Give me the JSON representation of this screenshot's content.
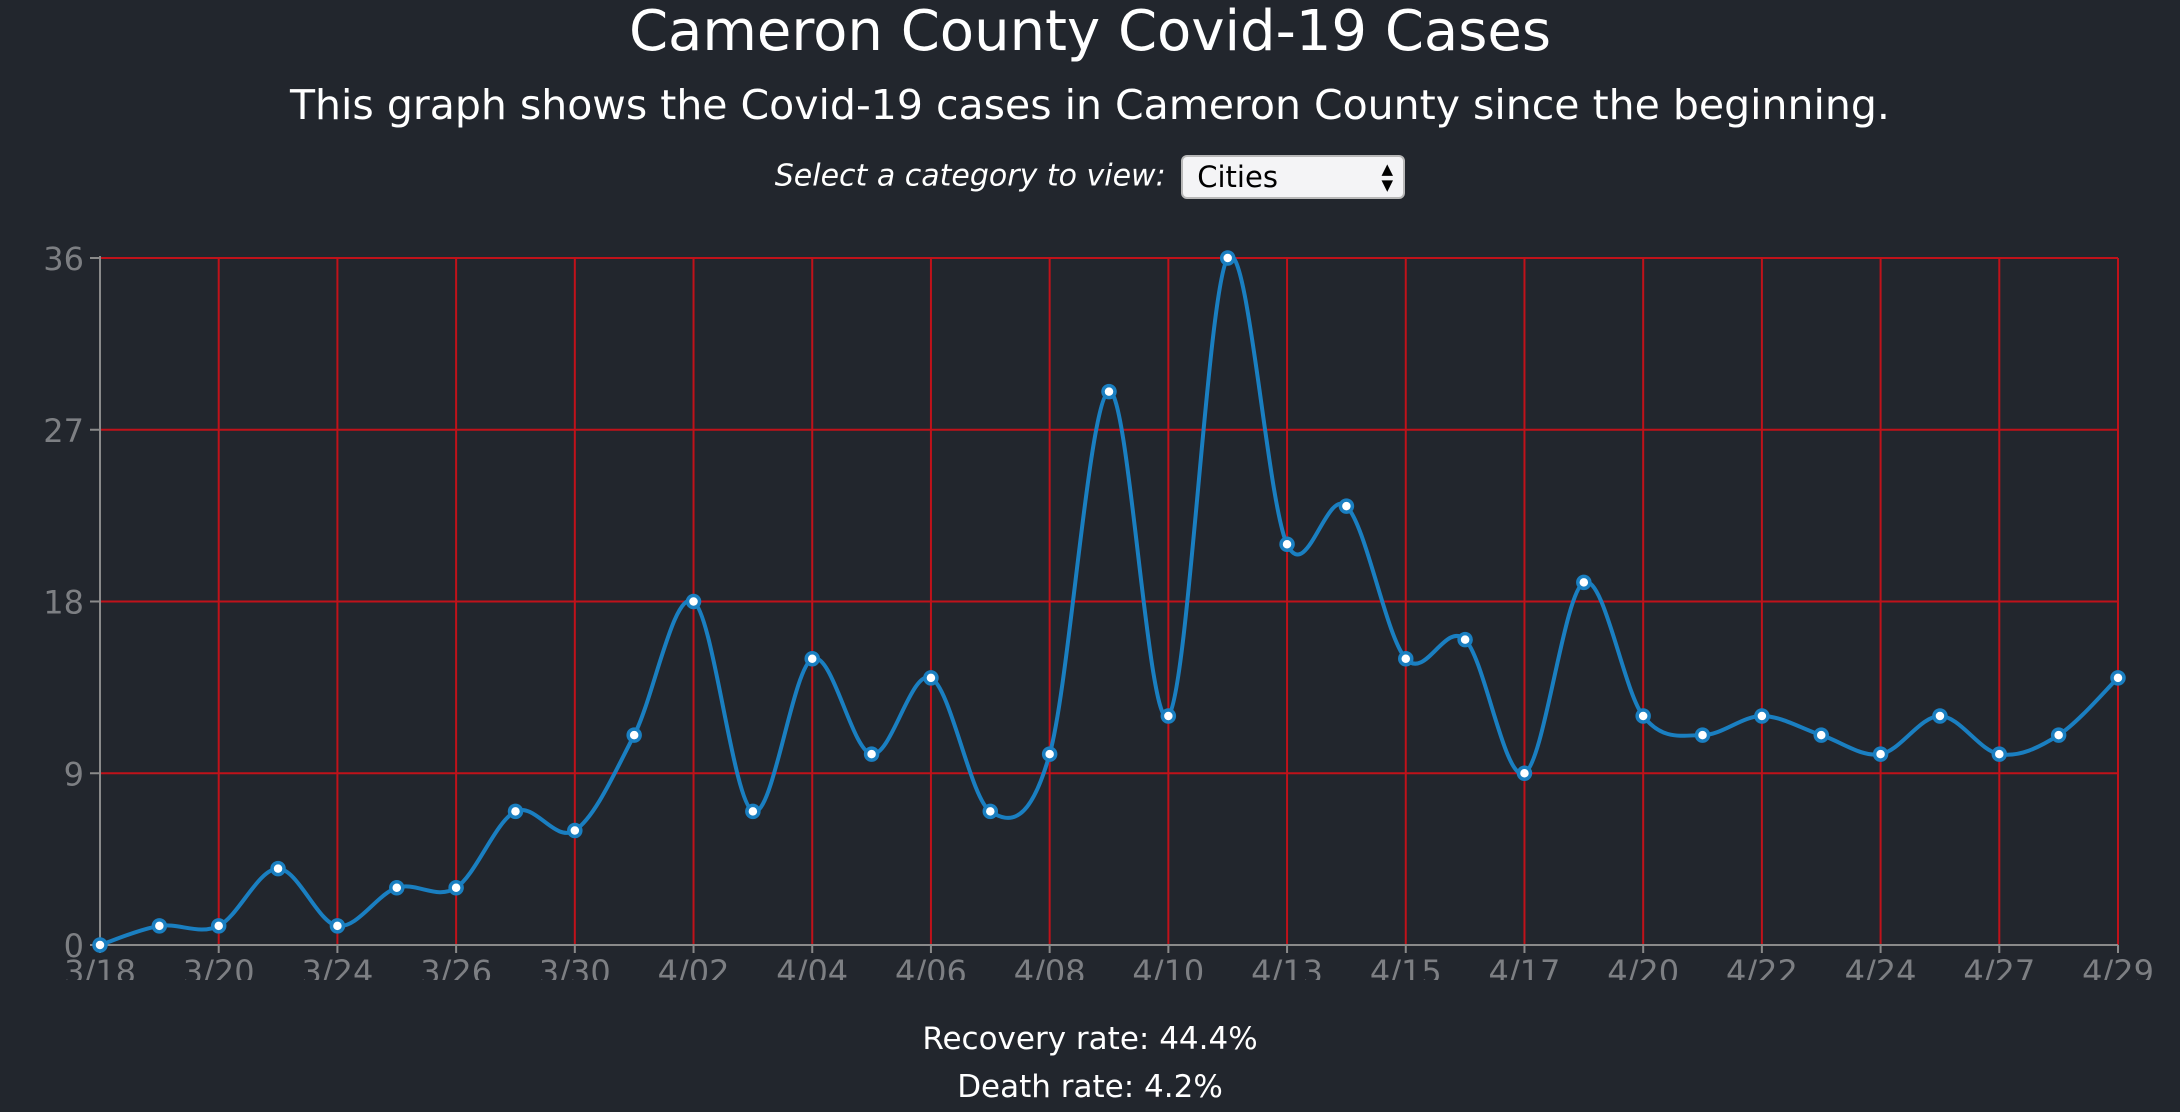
{
  "title": "Cameron County Covid-19 Cases",
  "subtitle": "This graph shows the Covid-19 cases in Cameron County since the beginning.",
  "selector": {
    "label": "Select a category to view:",
    "selected": "Cities"
  },
  "stats": {
    "recovery": "Recovery rate: 44.4%",
    "death": "Death rate: 4.2%"
  },
  "colors": {
    "background": "#22262d",
    "line": "#1a7fc1",
    "grid": "#c0121a",
    "axis_text": "#7d7f83",
    "axis_line": "#8a8a8a"
  },
  "chart_data": {
    "type": "line",
    "title": "",
    "xlabel": "",
    "ylabel": "",
    "ylim": [
      0,
      36
    ],
    "y_ticks": [
      "0",
      "9",
      "18",
      "27",
      "36"
    ],
    "x_tick_labels": [
      "3/18",
      "3/20",
      "3/24",
      "3/26",
      "3/30",
      "4/02",
      "4/04",
      "4/06",
      "4/08",
      "4/10",
      "4/13",
      "4/15",
      "4/17",
      "4/20",
      "4/22",
      "4/24",
      "4/27",
      "4/29"
    ],
    "grid": true,
    "values": [
      0,
      1,
      1,
      4,
      1,
      3,
      3,
      7,
      6,
      11,
      18,
      7,
      15,
      10,
      14,
      7,
      10,
      29,
      12,
      36,
      21,
      23,
      15,
      16,
      9,
      19,
      12,
      11,
      12,
      11,
      10,
      12,
      10,
      11,
      14
    ]
  }
}
